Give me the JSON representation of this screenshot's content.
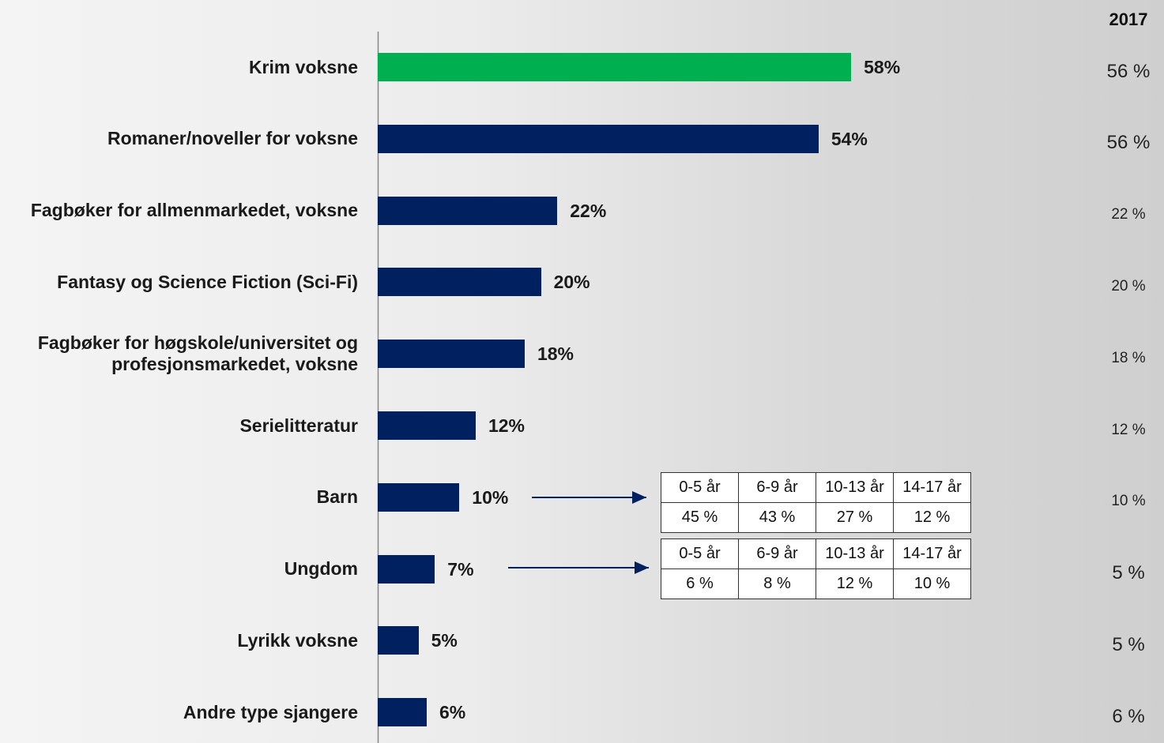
{
  "chart_data": {
    "type": "bar",
    "orientation": "horizontal",
    "categories": [
      "Krim voksne",
      "Romaner/noveller for voksne",
      "Fagbøker for allmenmarkedet, voksne",
      "Fantasy og Science Fiction (Sci-Fi)",
      "Fagbøker for høgskole/universitet og profesjonsmarkedet, voksne",
      "Serielitteratur",
      "Barn",
      "Ungdom",
      "Lyrikk voksne",
      "Andre type sjangere"
    ],
    "values": [
      58,
      54,
      22,
      20,
      18,
      12,
      10,
      7,
      5,
      6
    ],
    "value_labels": [
      "58%",
      "54%",
      "22%",
      "20%",
      "18%",
      "12%",
      "10%",
      "7%",
      "5%",
      "6%"
    ],
    "colors": [
      "#00b050",
      "#002060",
      "#002060",
      "#002060",
      "#002060",
      "#002060",
      "#002060",
      "#002060",
      "#002060",
      "#002060"
    ],
    "xlim": [
      0,
      100
    ],
    "comparison": {
      "title": "2017",
      "values": [
        56,
        56,
        22,
        20,
        18,
        12,
        10,
        5,
        5,
        6
      ],
      "value_labels": [
        "56 %",
        "56 %",
        "22 %",
        "20 %",
        "18 %",
        "12 %",
        "10 %",
        "5 %",
        "5 %",
        "6 %"
      ]
    },
    "insets": [
      {
        "columns": [
          "0-5 år",
          "6-9 år",
          "10-13 år",
          "14-17 år"
        ],
        "values": [
          45,
          43,
          27,
          12
        ],
        "value_labels": [
          "45 %",
          "43 %",
          "27 %",
          "12 %"
        ]
      },
      {
        "columns": [
          "0-5 år",
          "6-9 år",
          "10-13 år",
          "14-17 år"
        ],
        "values": [
          6,
          8,
          12,
          10
        ],
        "value_labels": [
          "6 %",
          "8 %",
          "12 %",
          "10 %"
        ]
      }
    ]
  }
}
